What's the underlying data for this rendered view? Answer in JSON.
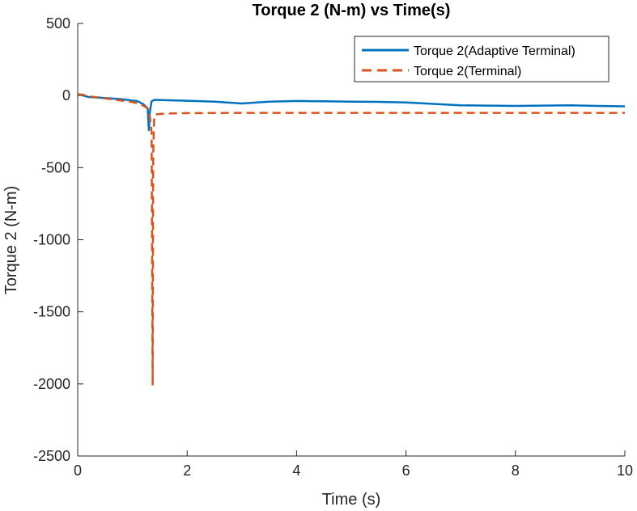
{
  "chart_data": {
    "type": "line",
    "title": "Torque 2 (N-m) vs Time(s)",
    "xlabel": "Time (s)",
    "ylabel": "Torque 2 (N-m)",
    "xlim": [
      0,
      10
    ],
    "ylim": [
      -2500,
      500
    ],
    "xticks": [
      0,
      2,
      4,
      6,
      8,
      10
    ],
    "yticks": [
      500,
      0,
      -500,
      -1000,
      -1500,
      -2000,
      -2500
    ],
    "grid": false,
    "legend": {
      "position": "top-right"
    },
    "series": [
      {
        "name": "Torque 2(Adaptive Terminal)",
        "color": "#0072BD",
        "style": "solid",
        "x": [
          0,
          0.1,
          0.2,
          0.4,
          0.6,
          0.8,
          1.0,
          1.1,
          1.2,
          1.28,
          1.3,
          1.32,
          1.35,
          1.4,
          1.6,
          2.0,
          2.5,
          3.0,
          3.5,
          4.0,
          4.5,
          5.0,
          5.5,
          6.0,
          6.5,
          7.0,
          7.5,
          8.0,
          8.5,
          9.0,
          9.5,
          10.0
        ],
        "y": [
          10,
          0,
          -10,
          -15,
          -20,
          -25,
          -35,
          -40,
          -60,
          -90,
          -240,
          -110,
          -40,
          -30,
          -32,
          -36,
          -42,
          -55,
          -42,
          -38,
          -40,
          -42,
          -44,
          -48,
          -58,
          -68,
          -70,
          -72,
          -70,
          -68,
          -72,
          -75
        ]
      },
      {
        "name": "Torque 2(Terminal)",
        "color": "#D95319",
        "style": "dashed",
        "x": [
          0,
          0.1,
          0.2,
          0.4,
          0.6,
          0.8,
          1.0,
          1.1,
          1.2,
          1.28,
          1.32,
          1.35,
          1.37,
          1.38,
          1.4,
          1.45,
          1.6,
          2.0,
          3.0,
          4.0,
          5.0,
          6.0,
          7.0,
          8.0,
          9.0,
          10.0
        ],
        "y": [
          10,
          5,
          -5,
          -15,
          -25,
          -35,
          -45,
          -55,
          -70,
          -90,
          -150,
          -250,
          -2010,
          -400,
          -140,
          -130,
          -125,
          -122,
          -120,
          -120,
          -120,
          -120,
          -120,
          -120,
          -120,
          -120
        ]
      }
    ]
  }
}
